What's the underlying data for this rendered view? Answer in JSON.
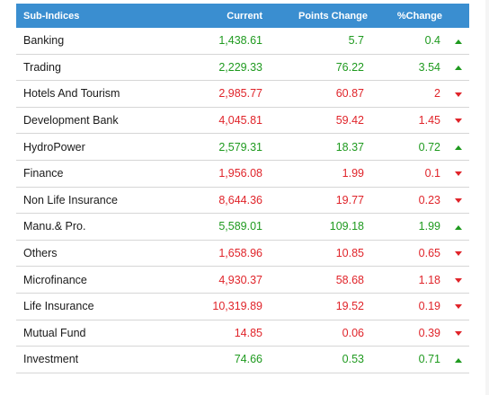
{
  "headers": {
    "name": "Sub-Indices",
    "current": "Current",
    "points": "Points Change",
    "percent": "%Change"
  },
  "colors": {
    "header_bg": "#3a8ed0",
    "up": "#1f9a1f",
    "down": "#e0242a"
  },
  "rows": [
    {
      "name": "Banking",
      "current": "1,438.61",
      "points": "5.7",
      "percent": "0.4",
      "direction": "up"
    },
    {
      "name": "Trading",
      "current": "2,229.33",
      "points": "76.22",
      "percent": "3.54",
      "direction": "up"
    },
    {
      "name": "Hotels And Tourism",
      "current": "2,985.77",
      "points": "60.87",
      "percent": "2",
      "direction": "down"
    },
    {
      "name": "Development Bank",
      "current": "4,045.81",
      "points": "59.42",
      "percent": "1.45",
      "direction": "down"
    },
    {
      "name": "HydroPower",
      "current": "2,579.31",
      "points": "18.37",
      "percent": "0.72",
      "direction": "up"
    },
    {
      "name": "Finance",
      "current": "1,956.08",
      "points": "1.99",
      "percent": "0.1",
      "direction": "down"
    },
    {
      "name": "Non Life Insurance",
      "current": "8,644.36",
      "points": "19.77",
      "percent": "0.23",
      "direction": "down"
    },
    {
      "name": "Manu.& Pro.",
      "current": "5,589.01",
      "points": "109.18",
      "percent": "1.99",
      "direction": "up"
    },
    {
      "name": "Others",
      "current": "1,658.96",
      "points": "10.85",
      "percent": "0.65",
      "direction": "down"
    },
    {
      "name": "Microfinance",
      "current": "4,930.37",
      "points": "58.68",
      "percent": "1.18",
      "direction": "down"
    },
    {
      "name": "Life Insurance",
      "current": "10,319.89",
      "points": "19.52",
      "percent": "0.19",
      "direction": "down"
    },
    {
      "name": "Mutual Fund",
      "current": "14.85",
      "points": "0.06",
      "percent": "0.39",
      "direction": "down"
    },
    {
      "name": "Investment",
      "current": "74.66",
      "points": "0.53",
      "percent": "0.71",
      "direction": "up"
    }
  ]
}
